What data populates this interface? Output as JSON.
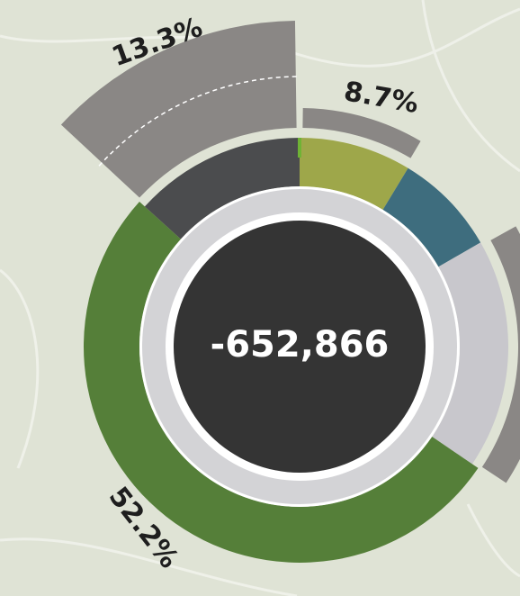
{
  "chart_data": {
    "type": "donut",
    "center_label": "-652,866",
    "values": [
      8.7,
      8.0,
      17.8,
      52.2,
      13.3
    ],
    "value_labels": [
      "8.7%",
      null,
      null,
      "52.2%",
      "13.3%"
    ],
    "colors": [
      "#9ea74a",
      "#3e6d7e",
      "#c8c7cc",
      "#557f39",
      "#4b4c4e"
    ]
  }
}
